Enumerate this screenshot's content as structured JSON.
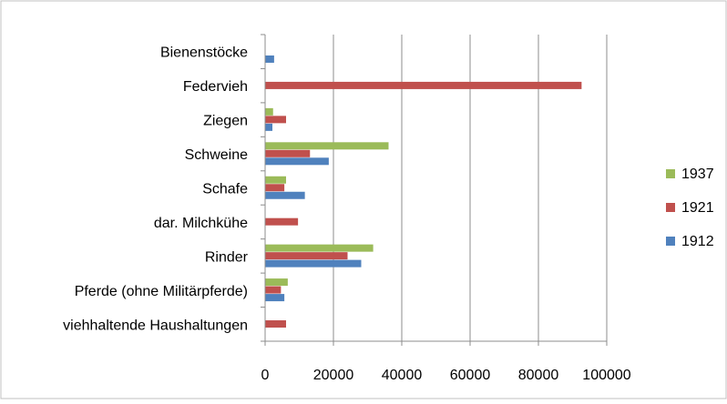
{
  "chart_data": {
    "type": "bar",
    "orientation": "horizontal",
    "title": "",
    "xlabel": "",
    "ylabel": "",
    "xlim": [
      0,
      100000
    ],
    "x_ticks": [
      "0",
      "20000",
      "40000",
      "60000",
      "80000",
      "100000"
    ],
    "grid": true,
    "legend_position": "right",
    "categories": [
      "Bienenstöcke",
      "Federvieh",
      "Ziegen",
      "Schweine",
      "Schafe",
      "dar. Milchkühe",
      "Rinder",
      "Pferde (ohne Militärpferde)",
      "viehhaltende Haushaltungen"
    ],
    "series": [
      {
        "name": "1937",
        "color": "#9bbb59",
        "values": [
          null,
          null,
          2200,
          36000,
          6000,
          null,
          31500,
          6500,
          null
        ]
      },
      {
        "name": "1921",
        "color": "#c0504d",
        "values": [
          null,
          92500,
          6000,
          13000,
          5500,
          9500,
          24000,
          4500,
          6000
        ]
      },
      {
        "name": "1912",
        "color": "#4f81bd",
        "values": [
          2500,
          null,
          2000,
          18500,
          11500,
          null,
          28000,
          5500,
          null
        ]
      }
    ]
  }
}
